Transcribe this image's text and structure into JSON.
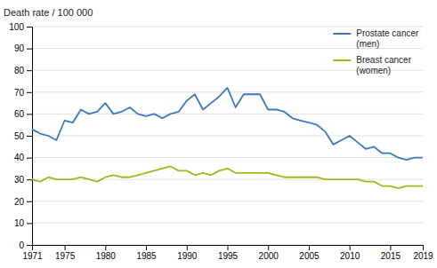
{
  "chart_data": {
    "type": "line",
    "y_label": "Death rate / 100 000",
    "x": [
      1971,
      1972,
      1973,
      1974,
      1975,
      1976,
      1977,
      1978,
      1979,
      1980,
      1981,
      1982,
      1983,
      1984,
      1985,
      1986,
      1987,
      1988,
      1989,
      1990,
      1991,
      1992,
      1993,
      1994,
      1995,
      1996,
      1997,
      1998,
      1999,
      2000,
      2001,
      2002,
      2003,
      2004,
      2005,
      2006,
      2007,
      2008,
      2009,
      2010,
      2011,
      2012,
      2013,
      2014,
      2015,
      2016,
      2017,
      2018,
      2019
    ],
    "series": [
      {
        "name": "Prostate cancer\n(men)",
        "color": "#3a7abf",
        "values": [
          53,
          51,
          50,
          48,
          57,
          56,
          62,
          60,
          61,
          65,
          60,
          61,
          63,
          60,
          59,
          60,
          58,
          60,
          61,
          66,
          69,
          62,
          65,
          68,
          72,
          63,
          69,
          69,
          69,
          62,
          62,
          61,
          58,
          57,
          56,
          55,
          52,
          46,
          48,
          50,
          47,
          44,
          45,
          42,
          42,
          40,
          39,
          40,
          40
        ]
      },
      {
        "name": "Breast cancer\n(women)",
        "color": "#a0b820",
        "values": [
          30,
          29,
          31,
          30,
          30,
          30,
          31,
          30,
          29,
          31,
          32,
          31,
          31,
          32,
          33,
          34,
          35,
          36,
          34,
          34,
          32,
          33,
          32,
          34,
          35,
          33,
          33,
          33,
          33,
          33,
          32,
          31,
          31,
          31,
          31,
          31,
          30,
          30,
          30,
          30,
          30,
          29,
          29,
          27,
          27,
          26,
          27,
          27,
          27
        ]
      }
    ],
    "xlim": [
      1971,
      2019
    ],
    "ylim": [
      0,
      100
    ],
    "xticks": [
      1971,
      1975,
      1980,
      1985,
      1990,
      1995,
      2000,
      2005,
      2010,
      2015,
      2019
    ],
    "yticks": [
      0,
      10,
      20,
      30,
      40,
      50,
      60,
      70,
      80,
      90,
      100
    ],
    "grid": true,
    "legend": "upper right"
  }
}
